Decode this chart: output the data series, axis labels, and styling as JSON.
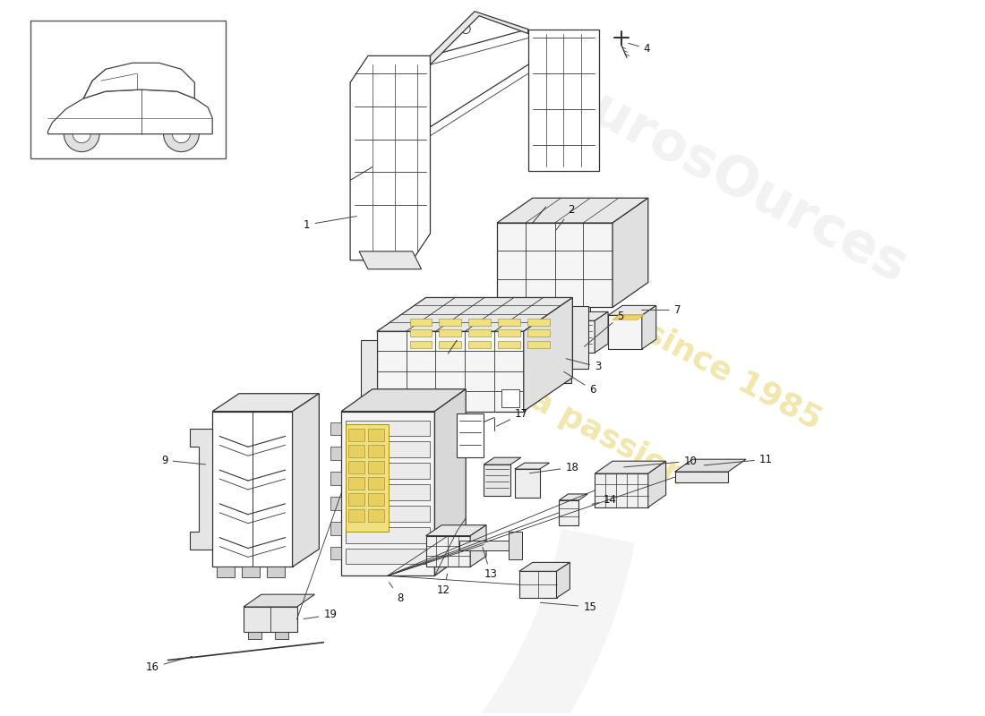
{
  "bg_color": "#ffffff",
  "line_color": "#333333",
  "watermark1": "eurosOurces",
  "watermark2": "a passion",
  "watermark3": "since 1985",
  "figsize": [
    11.0,
    8.0
  ],
  "dpi": 100
}
